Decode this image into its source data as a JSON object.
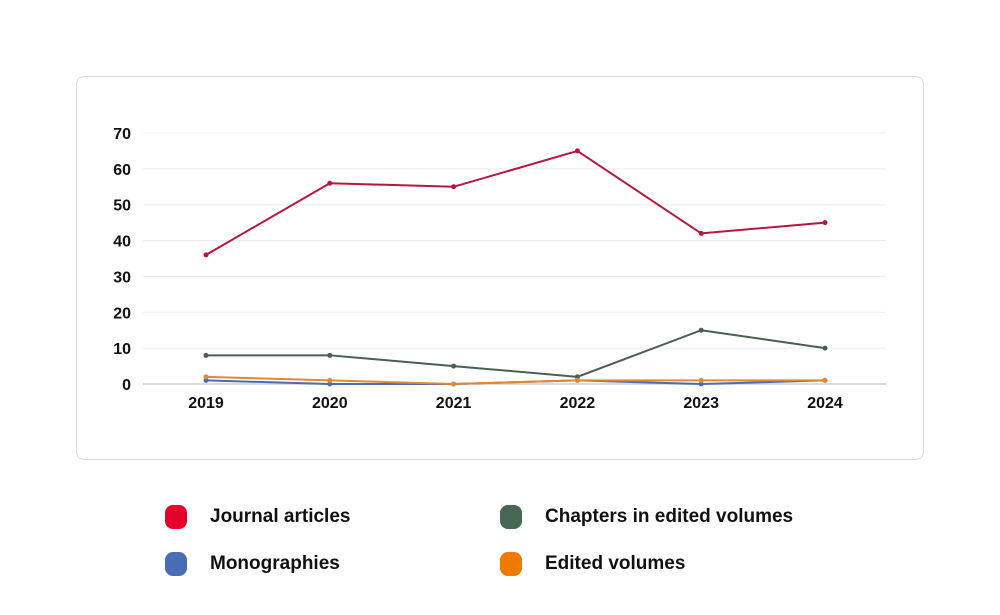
{
  "chart_data": {
    "type": "line",
    "categories": [
      "2019",
      "2020",
      "2021",
      "2022",
      "2023",
      "2024"
    ],
    "ylim": [
      0,
      70
    ],
    "yticks": [
      0,
      10,
      20,
      30,
      40,
      50,
      60,
      70
    ],
    "grid": true,
    "legend_placement": "bottom",
    "series": [
      {
        "name": "Journal articles",
        "color": "#b5173f",
        "legend_color": "#e4002b",
        "values": [
          36,
          56,
          55,
          65,
          42,
          45
        ]
      },
      {
        "name": "Chapters in edited volumes",
        "color": "#4a5f52",
        "legend_color": "#486856",
        "values": [
          8,
          8,
          5,
          2,
          15,
          10
        ]
      },
      {
        "name": "Monographies",
        "color": "#4a6cb5",
        "legend_color": "#4a6cb5",
        "values": [
          1,
          0,
          0,
          1,
          0,
          1
        ]
      },
      {
        "name": "Edited volumes",
        "color": "#e08a30",
        "legend_color": "#ee7a00",
        "values": [
          2,
          1,
          0,
          1,
          1,
          1
        ]
      }
    ]
  }
}
